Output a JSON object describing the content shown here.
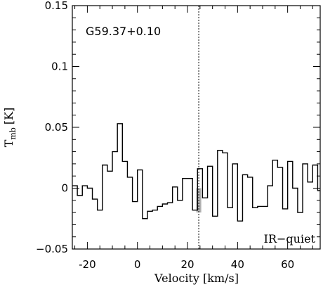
{
  "chart_data": {
    "type": "line",
    "subtype": "histogram-step",
    "xlabel": "Velocity [km/s]",
    "ylabel": "T",
    "ylabel_sub": "mb",
    "ylabel_unit": "[K]",
    "xlim": [
      -26,
      73
    ],
    "ylim": [
      -0.05,
      0.15
    ],
    "x_ticks": [
      -20,
      0,
      20,
      40,
      60
    ],
    "y_ticks": [
      {
        "value": -0.05,
        "label": "−0.05"
      },
      {
        "value": 0,
        "label": "0"
      },
      {
        "value": 0.05,
        "label": "0.05"
      },
      {
        "value": 0.1,
        "label": "0.1"
      },
      {
        "value": 0.15,
        "label": "0.15"
      }
    ],
    "annotations": {
      "source_name": "G59.37+0.10",
      "classification": "IR−quiet"
    },
    "reference_velocity": 24.5,
    "shaded_region": [
      23.5,
      25.5
    ],
    "grid": false,
    "series": [
      {
        "x": [
          -26,
          -24,
          -22,
          -20,
          -18,
          -16,
          -14,
          -12,
          -10,
          -8,
          -6,
          -4,
          -2,
          0,
          2,
          4,
          6,
          8,
          10,
          12,
          14,
          16,
          18,
          20,
          22,
          24,
          26,
          28,
          30,
          32,
          34,
          36,
          38,
          40,
          42,
          44,
          46,
          48,
          50,
          52,
          54,
          56,
          58,
          60,
          62,
          64,
          66,
          68,
          70,
          72
        ],
        "values": [
          0.002,
          -0.006,
          0.002,
          0.0,
          -0.009,
          -0.018,
          0.019,
          0.014,
          0.03,
          0.053,
          0.022,
          0.009,
          -0.011,
          0.015,
          -0.025,
          -0.019,
          -0.018,
          -0.015,
          -0.013,
          -0.012,
          0.001,
          -0.01,
          0.008,
          0.008,
          -0.018,
          0.016,
          -0.008,
          0.018,
          -0.023,
          0.031,
          0.029,
          -0.016,
          0.02,
          -0.027,
          0.011,
          0.009,
          -0.016,
          -0.015,
          -0.015,
          0.002,
          0.023,
          0.017,
          -0.017,
          0.022,
          0.0,
          -0.02,
          0.02,
          0.005,
          0.019,
          -0.002
        ]
      }
    ]
  }
}
